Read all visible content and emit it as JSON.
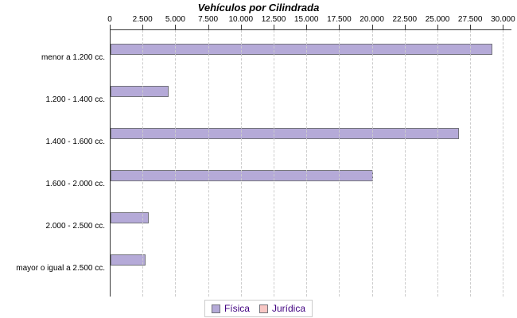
{
  "chart_data": {
    "type": "bar",
    "orientation": "horizontal",
    "title": "Vehículos por Cilindrada",
    "categories": [
      "menor a 1.200 cc.",
      "1.200 - 1.400 cc.",
      "1.400 - 1.600 cc.",
      "1.600 - 2.000 cc.",
      "2.000 - 2.500 cc.",
      "mayor o igual a 2.500 cc."
    ],
    "series": [
      {
        "name": "Física",
        "color": "#b5aad8",
        "border_color": "#73737b",
        "values": [
          29150,
          4400,
          26600,
          20000,
          2900,
          2650
        ]
      },
      {
        "name": "Jurídica",
        "color": "#f8c7c4",
        "border_color": "#73737b",
        "values": [
          0,
          0,
          0,
          0,
          0,
          0
        ]
      }
    ],
    "value_axis": {
      "min": 0,
      "max": 30000,
      "tick_interval": 2500,
      "tick_labels": [
        "0",
        "2.500",
        "5.000",
        "7.500",
        "10.000",
        "12.500",
        "15.000",
        "17.500",
        "20.000",
        "22.500",
        "25.000",
        "27.500",
        "30.000"
      ],
      "position": "top"
    },
    "grid": "vertical-dashed",
    "legend_position": "bottom"
  },
  "colors": {
    "background": "#ffffff",
    "grid": "#cccccc",
    "axis": "#3a3a3a",
    "text": "#000000",
    "legend_text": "#400080",
    "legend_border": "#cccccc"
  }
}
